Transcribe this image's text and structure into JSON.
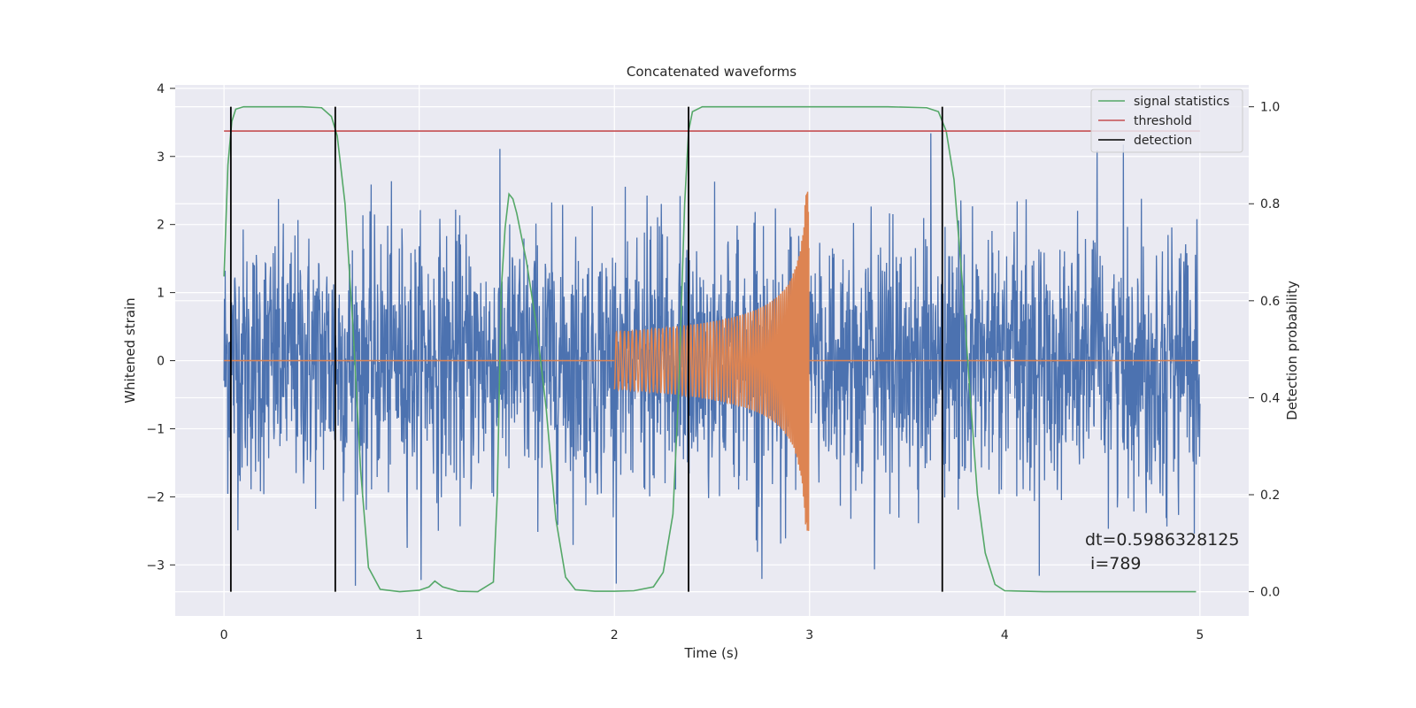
{
  "chart_data": {
    "type": "line",
    "title": "Concatenated waveforms",
    "xlabel": "Time (s)",
    "ylabel": "Whitened strain",
    "y2label": "Detection probability",
    "xlim": [
      -0.25,
      5.25
    ],
    "ylim": [
      -3.75,
      4.05
    ],
    "y2lim": [
      -0.05,
      1.045
    ],
    "x_ticks": [
      0,
      1,
      2,
      3,
      4,
      5
    ],
    "y_ticks": [
      -3,
      -2,
      -1,
      0,
      1,
      2,
      3,
      4
    ],
    "y2_ticks": [
      0.0,
      0.2,
      0.4,
      0.6,
      0.8,
      1.0
    ],
    "x_tick_labels": [
      "0",
      "1",
      "2",
      "3",
      "4",
      "5"
    ],
    "y_tick_labels": [
      "−3",
      "−2",
      "−1",
      "0",
      "1",
      "2",
      "3",
      "4"
    ],
    "y2_tick_labels": [
      "0.0",
      "0.2",
      "0.4",
      "0.6",
      "0.8",
      "1.0"
    ],
    "grid": true,
    "legend_position": "top-right",
    "legend": [
      "signal statistics",
      "threshold",
      "detection"
    ],
    "colors": {
      "noise": "#4c72b0",
      "injection": "#dd8452",
      "signal_statistics": "#55a868",
      "threshold": "#c44e52",
      "detection": "#000000",
      "plot_background": "#eaeaf2",
      "grid": "#ffffff"
    },
    "series": [
      {
        "name": "signal statistics",
        "axis": "right",
        "x": [
          0.0,
          0.02,
          0.04,
          0.06,
          0.1,
          0.2,
          0.3,
          0.4,
          0.5,
          0.55,
          0.58,
          0.62,
          0.66,
          0.7,
          0.74,
          0.8,
          0.9,
          1.0,
          1.05,
          1.08,
          1.12,
          1.2,
          1.3,
          1.38,
          1.4,
          1.42,
          1.44,
          1.46,
          1.48,
          1.5,
          1.55,
          1.6,
          1.65,
          1.7,
          1.75,
          1.8,
          1.9,
          2.0,
          2.1,
          2.2,
          2.25,
          2.3,
          2.33,
          2.36,
          2.38,
          2.4,
          2.45,
          2.6,
          2.8,
          3.0,
          3.2,
          3.4,
          3.6,
          3.66,
          3.7,
          3.74,
          3.78,
          3.82,
          3.86,
          3.9,
          3.95,
          4.0,
          4.2,
          4.4,
          4.6,
          4.8,
          4.98
        ],
        "y": [
          0.65,
          0.88,
          0.97,
          0.995,
          1.0,
          1.0,
          1.0,
          1.0,
          0.998,
          0.98,
          0.94,
          0.8,
          0.55,
          0.25,
          0.05,
          0.005,
          0.0,
          0.003,
          0.01,
          0.022,
          0.01,
          0.001,
          0.0,
          0.02,
          0.2,
          0.62,
          0.75,
          0.82,
          0.81,
          0.78,
          0.68,
          0.55,
          0.38,
          0.15,
          0.03,
          0.004,
          0.001,
          0.001,
          0.002,
          0.01,
          0.04,
          0.16,
          0.42,
          0.8,
          0.95,
          0.99,
          1.0,
          1.0,
          1.0,
          1.0,
          1.0,
          1.0,
          0.998,
          0.99,
          0.95,
          0.85,
          0.65,
          0.42,
          0.2,
          0.08,
          0.015,
          0.002,
          0.0,
          0.0,
          0.0,
          0.0,
          0.0
        ]
      },
      {
        "name": "threshold",
        "axis": "right",
        "x": [
          0.0,
          5.0
        ],
        "y": [
          0.95,
          0.95
        ]
      }
    ],
    "detections": [
      0.035,
      0.57,
      2.38,
      3.68
    ],
    "detection_range": [
      0.0,
      1.0
    ],
    "noise_description": {
      "x_range": [
        0.0,
        5.0
      ],
      "amplitude_range": [
        -3.4,
        3.65
      ]
    },
    "injection": {
      "x_range": [
        2.0,
        3.0
      ],
      "peak_amplitude": 2.5
    },
    "annotation": {
      "line1": "dt=0.5986328125",
      "line2": " i=789",
      "x": 4.5,
      "y": 0.1
    }
  }
}
